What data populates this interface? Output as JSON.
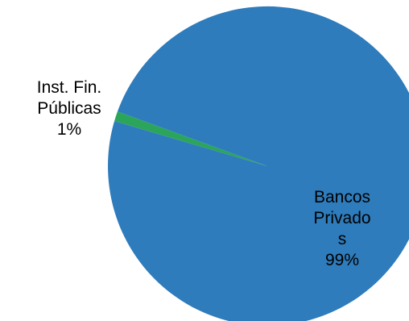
{
  "chart_data": {
    "type": "pie",
    "title": "",
    "slices": [
      {
        "label_lines": [
          "Inst. Fin.",
          "Públicas"
        ],
        "percent_label": "1%",
        "value": 1,
        "color": "#2ba55a"
      },
      {
        "label_lines": [
          "Bancos",
          "Privado",
          "s"
        ],
        "percent_label": "99%",
        "value": 99,
        "color": "#2e7cbc"
      }
    ],
    "start_angle_deg": 160,
    "legend": "none"
  }
}
